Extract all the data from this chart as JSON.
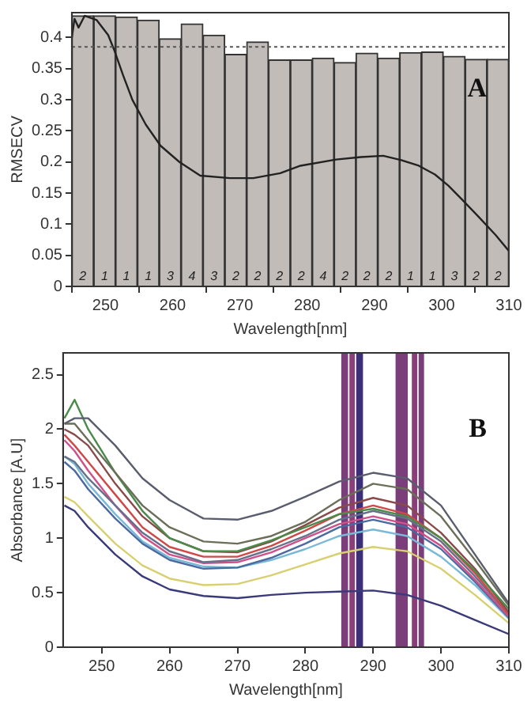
{
  "chart_data": [
    {
      "type": "bar",
      "xlabel": "Wavelength[nm]",
      "ylabel": "RMSECV",
      "xlim": [
        245,
        310
      ],
      "xticks": [
        250,
        260,
        270,
        280,
        290,
        300,
        310
      ],
      "ylim": [
        0,
        0.44
      ],
      "yticks": [
        0,
        0.05,
        0.1,
        0.15,
        0.2,
        0.25,
        0.3,
        0.35,
        0.4
      ],
      "grid": false,
      "legend": false,
      "marker": "none",
      "series": [
        {
          "type": "bar",
          "color": "#c2bcb9",
          "x": [
            246.625,
            249.875,
            253.125,
            256.375,
            259.625,
            262.875,
            266.125,
            269.375,
            272.625,
            275.875,
            279.125,
            282.375,
            285.625,
            288.875,
            292.125,
            295.375,
            298.625,
            301.875,
            305.125,
            308.375
          ],
          "values": [
            0.435,
            0.435,
            0.433,
            0.428,
            0.398,
            0.422,
            0.404,
            0.373,
            0.393,
            0.364,
            0.364,
            0.367,
            0.36,
            0.375,
            0.367,
            0.376,
            0.377,
            0.37,
            0.365,
            0.365
          ]
        },
        {
          "type": "line",
          "color": "#222222",
          "x": [
            245,
            245.4,
            246,
            246.9,
            248.7,
            250.4,
            251.3,
            252.6,
            254,
            256,
            258.2,
            261,
            264.1,
            268.5,
            272,
            276,
            279,
            284.3,
            288,
            291.3,
            294,
            296.6,
            299,
            301,
            303,
            305.4,
            308,
            310
          ],
          "values": [
            0.4,
            0.43,
            0.416,
            0.435,
            0.428,
            0.404,
            0.38,
            0.34,
            0.3,
            0.26,
            0.226,
            0.2,
            0.178,
            0.174,
            0.174,
            0.182,
            0.194,
            0.204,
            0.208,
            0.21,
            0.203,
            0.194,
            0.18,
            0.162,
            0.14,
            0.113,
            0.083,
            0.057
          ]
        }
      ],
      "ref_lines": [
        {
          "axis": "y",
          "value": 0.385,
          "line_style": "dotted",
          "color": "#555555"
        }
      ],
      "annotations": [
        "A",
        {
          "text": "2",
          "x": 246.625,
          "y": 0
        },
        {
          "text": "1",
          "x": 249.875,
          "y": 0
        },
        {
          "text": "1",
          "x": 253.125,
          "y": 0
        },
        {
          "text": "1",
          "x": 256.375,
          "y": 0
        },
        {
          "text": "3",
          "x": 259.625,
          "y": 0
        },
        {
          "text": "4",
          "x": 262.875,
          "y": 0
        },
        {
          "text": "3",
          "x": 266.125,
          "y": 0
        },
        {
          "text": "2",
          "x": 269.375,
          "y": 0
        },
        {
          "text": "2",
          "x": 272.625,
          "y": 0
        },
        {
          "text": "2",
          "x": 275.875,
          "y": 0
        },
        {
          "text": "2",
          "x": 279.125,
          "y": 0
        },
        {
          "text": "4",
          "x": 282.375,
          "y": 0
        },
        {
          "text": "2",
          "x": 285.625,
          "y": 0
        },
        {
          "text": "2",
          "x": 288.875,
          "y": 0
        },
        {
          "text": "2",
          "x": 292.125,
          "y": 0
        },
        {
          "text": "1",
          "x": 295.375,
          "y": 0
        },
        {
          "text": "1",
          "x": 298.625,
          "y": 0
        },
        {
          "text": "3",
          "x": 301.875,
          "y": 0
        },
        {
          "text": "2",
          "x": 305.125,
          "y": 0
        },
        {
          "text": "2",
          "x": 308.375,
          "y": 0
        }
      ]
    },
    {
      "type": "line",
      "xlabel": "Wavelength[nm]",
      "ylabel": "Absorbance [A.U]",
      "xlim": [
        244.3,
        310
      ],
      "xticks": [
        250,
        260,
        270,
        280,
        290,
        300,
        310
      ],
      "ylim": [
        0,
        2.7
      ],
      "yticks": [
        0,
        0.5,
        1,
        1.5,
        2,
        2.5
      ],
      "grid": false,
      "legend": false,
      "marker": "none",
      "x": [
        244.5,
        246,
        248,
        252,
        256,
        260,
        265,
        270,
        275,
        280,
        285,
        290,
        295,
        300,
        305,
        310
      ],
      "series": [
        {
          "color": "#5a5d6e",
          "values": [
            2.05,
            2.1,
            2.1,
            1.85,
            1.55,
            1.35,
            1.18,
            1.17,
            1.25,
            1.38,
            1.52,
            1.6,
            1.55,
            1.3,
            0.85,
            0.4
          ]
        },
        {
          "color": "#6b6e58",
          "values": [
            2.05,
            2.05,
            1.9,
            1.6,
            1.3,
            1.1,
            0.97,
            0.95,
            1.02,
            1.15,
            1.35,
            1.5,
            1.45,
            1.2,
            0.8,
            0.38
          ]
        },
        {
          "color": "#4a8a4a",
          "values": [
            2.1,
            2.27,
            2.0,
            1.6,
            1.25,
            1.0,
            0.88,
            0.88,
            0.98,
            1.1,
            1.22,
            1.27,
            1.2,
            1.0,
            0.7,
            0.35
          ]
        },
        {
          "color": "#8a4a4a",
          "values": [
            2.0,
            1.95,
            1.85,
            1.5,
            1.2,
            1.0,
            0.88,
            0.87,
            0.97,
            1.12,
            1.28,
            1.37,
            1.3,
            1.05,
            0.72,
            0.32
          ]
        },
        {
          "color": "#d04848",
          "values": [
            1.95,
            1.85,
            1.7,
            1.4,
            1.1,
            0.92,
            0.83,
            0.83,
            0.93,
            1.07,
            1.22,
            1.3,
            1.22,
            1.0,
            0.68,
            0.3
          ]
        },
        {
          "color": "#66708a",
          "values": [
            1.75,
            1.7,
            1.55,
            1.3,
            1.05,
            0.88,
            0.78,
            0.8,
            0.9,
            1.02,
            1.17,
            1.25,
            1.18,
            0.97,
            0.65,
            0.3
          ]
        },
        {
          "color": "#d0508a",
          "values": [
            1.9,
            1.8,
            1.62,
            1.3,
            1.02,
            0.85,
            0.77,
            0.78,
            0.87,
            1.0,
            1.13,
            1.2,
            1.13,
            0.93,
            0.62,
            0.28
          ]
        },
        {
          "color": "#4a6aa0",
          "values": [
            1.7,
            1.62,
            1.45,
            1.18,
            0.95,
            0.8,
            0.72,
            0.73,
            0.82,
            0.95,
            1.1,
            1.17,
            1.1,
            0.9,
            0.6,
            0.27
          ]
        },
        {
          "color": "#7ab8d8",
          "values": [
            1.75,
            1.68,
            1.5,
            1.22,
            0.97,
            0.82,
            0.74,
            0.73,
            0.8,
            0.9,
            1.02,
            1.08,
            1.02,
            0.83,
            0.57,
            0.26
          ]
        },
        {
          "color": "#d8d070",
          "values": [
            1.38,
            1.33,
            1.2,
            0.95,
            0.75,
            0.63,
            0.57,
            0.58,
            0.66,
            0.76,
            0.86,
            0.92,
            0.88,
            0.72,
            0.48,
            0.22
          ]
        },
        {
          "color": "#3a3a7a",
          "values": [
            1.3,
            1.25,
            1.1,
            0.85,
            0.65,
            0.53,
            0.47,
            0.45,
            0.48,
            0.5,
            0.51,
            0.52,
            0.48,
            0.38,
            0.25,
            0.12
          ]
        }
      ],
      "bands": [
        {
          "axis": "x",
          "from": 285.3,
          "to": 286.3,
          "color": "#7a3f7a"
        },
        {
          "axis": "x",
          "from": 286.5,
          "to": 287.3,
          "color": "#8a3f7a"
        },
        {
          "axis": "x",
          "from": 287.5,
          "to": 288.5,
          "color": "#3c2f7a"
        },
        {
          "axis": "x",
          "from": 293.3,
          "to": 295.1,
          "color": "#7a3f7a"
        },
        {
          "axis": "x",
          "from": 295.7,
          "to": 296.5,
          "color": "#8a3f7a"
        },
        {
          "axis": "x",
          "from": 296.7,
          "to": 297.5,
          "color": "#7a3f7a"
        }
      ],
      "annotations": [
        "B"
      ]
    }
  ]
}
